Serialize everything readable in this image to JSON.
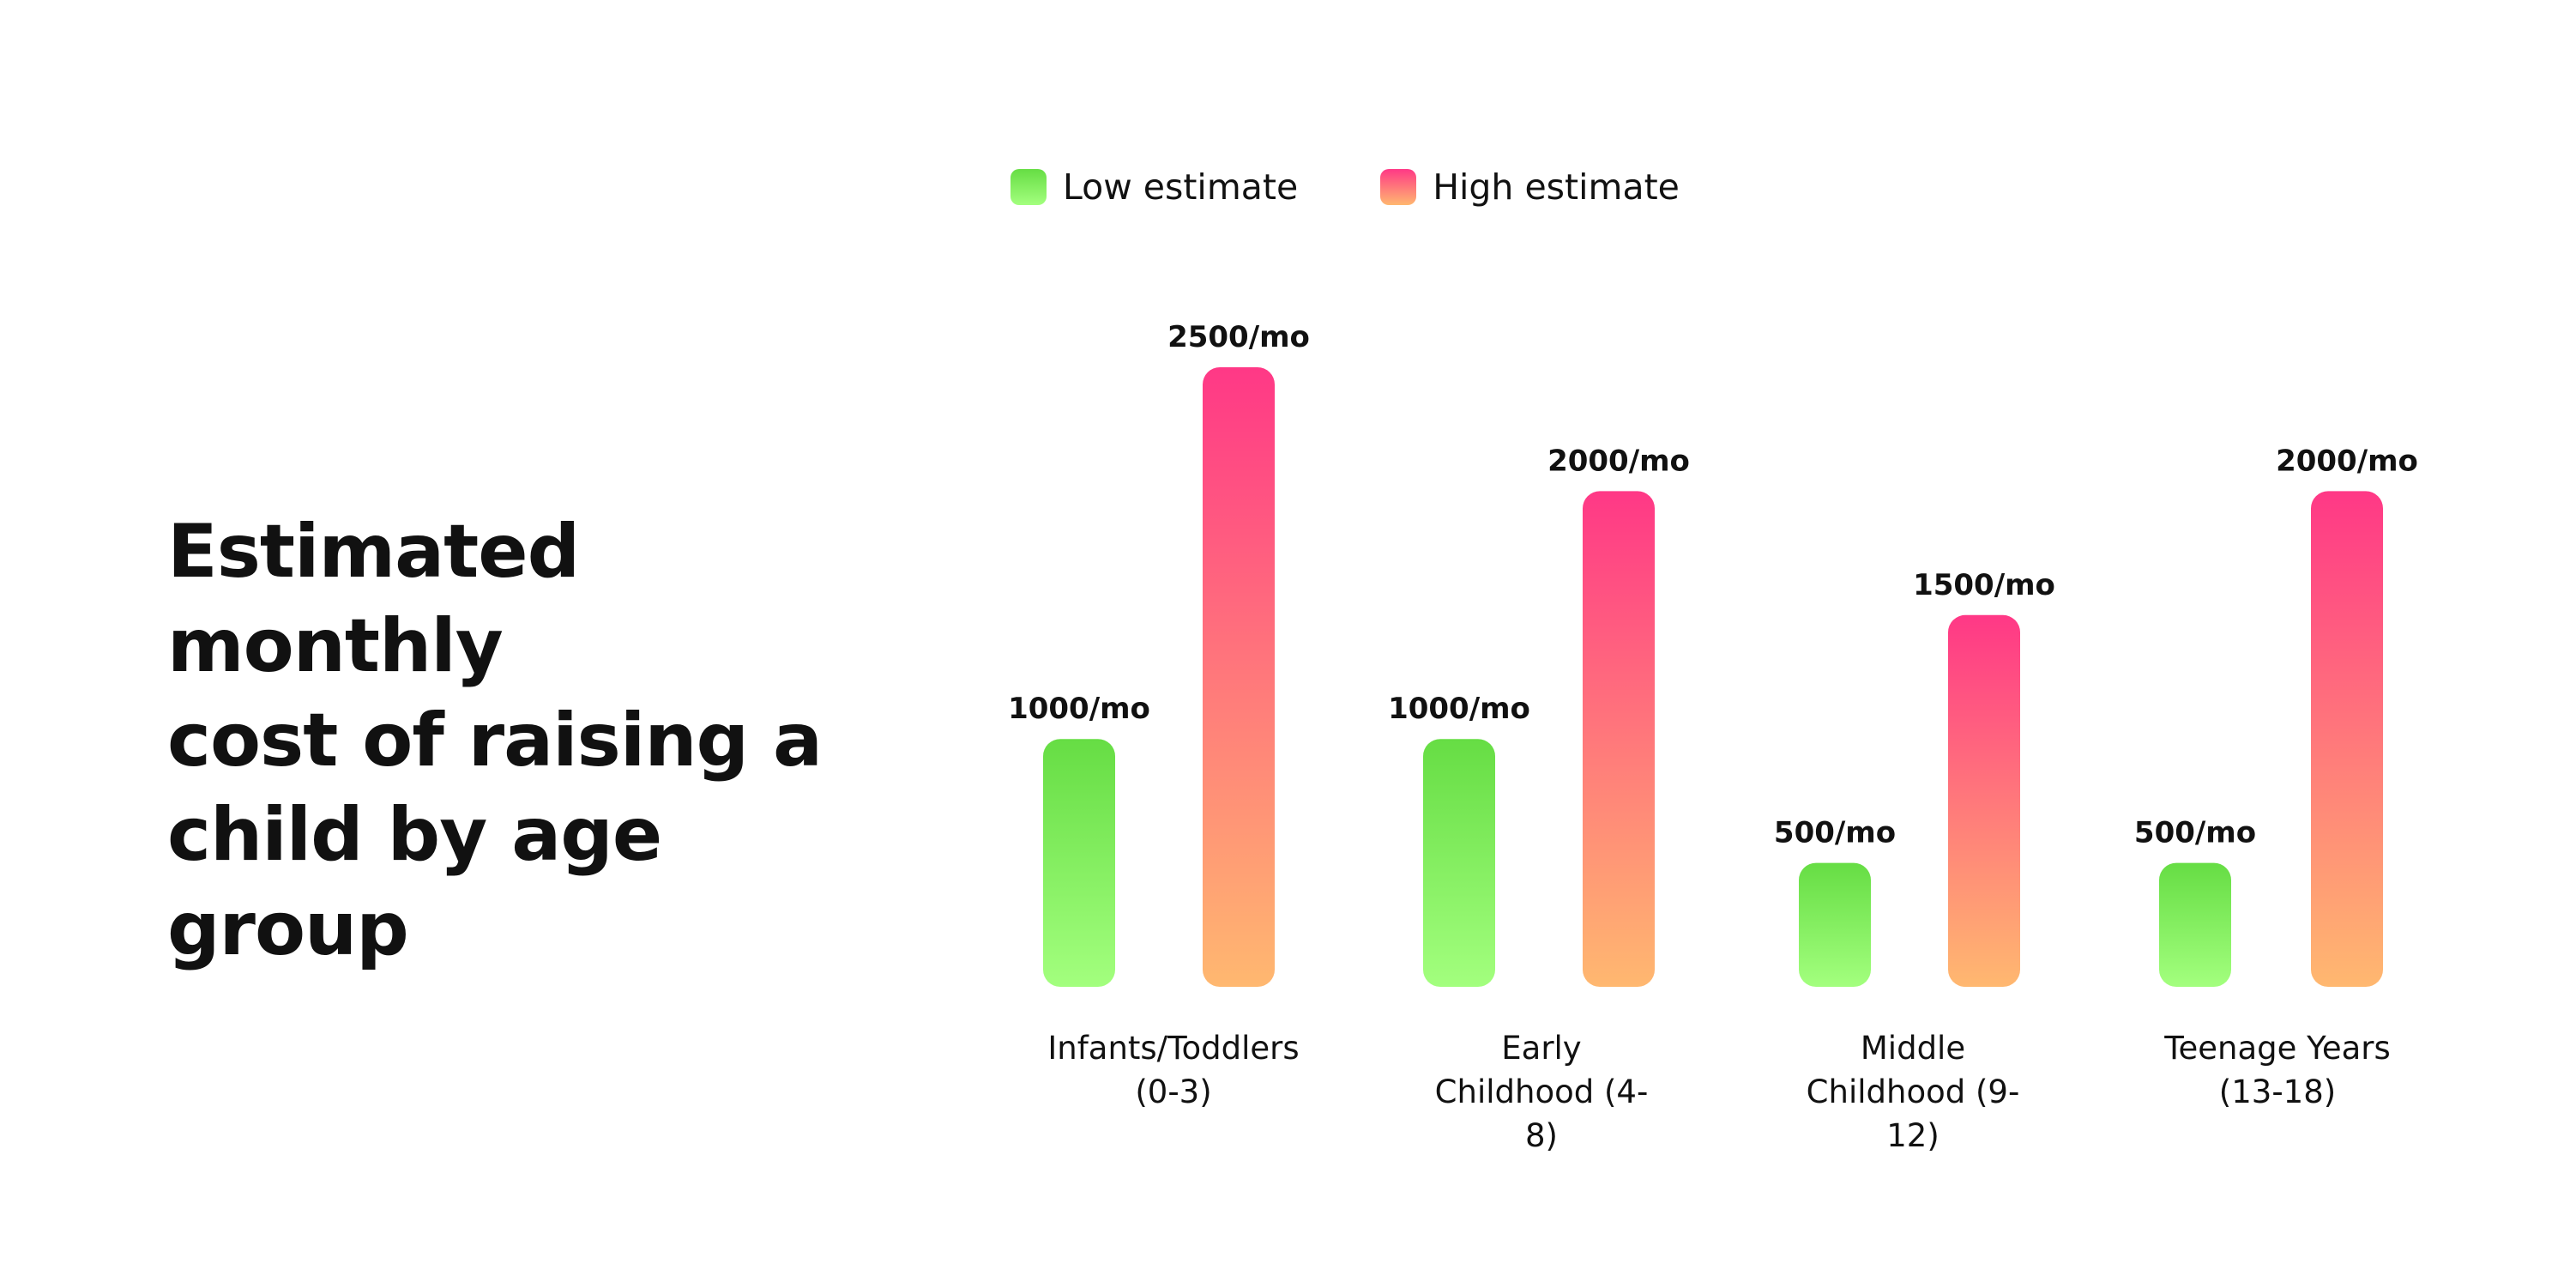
{
  "title": "Estimated monthly cost of raising a child by age group",
  "title_lines": [
    "Estimated monthly",
    "cost of raising a",
    "child by age group"
  ],
  "chart_data": {
    "type": "bar",
    "categories": [
      "Infants/Toddlers (0-3)",
      "Early Childhood (4-8)",
      "Middle Childhood (9-12)",
      "Teenage Years (13-18)"
    ],
    "category_label_lines": [
      [
        "Infants/Toddlers",
        "(0-3)"
      ],
      [
        "Early",
        "Childhood (4-",
        "8)"
      ],
      [
        "Middle",
        "Childhood (9-",
        "12)"
      ],
      [
        "Teenage Years",
        "(13-18)"
      ]
    ],
    "series": [
      {
        "name": "Low estimate",
        "values": [
          1000,
          1000,
          500,
          500
        ],
        "labels": [
          "1000/mo",
          "1000/mo",
          "500/mo",
          "500/mo"
        ],
        "gradient": [
          "#66dd44",
          "#a3ff7e"
        ]
      },
      {
        "name": "High estimate",
        "values": [
          2500,
          2000,
          1500,
          2000
        ],
        "labels": [
          "2500/mo",
          "2000/mo",
          "1500/mo",
          "2000/mo"
        ],
        "gradient": [
          "#ff3886",
          "#ffb870"
        ]
      }
    ],
    "ylim": [
      0,
      2500
    ],
    "legend": "top",
    "grid": false
  }
}
